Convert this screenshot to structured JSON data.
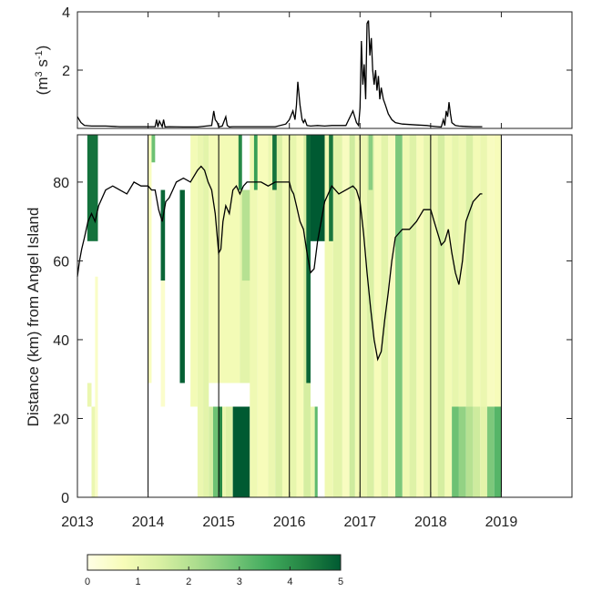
{
  "chart_data": [
    {
      "type": "line",
      "ylabel_main": "(m",
      "ylabel_sup1": "3",
      "ylabel_mid": " s",
      "ylabel_sup2": "-1",
      "ylabel_end": ")",
      "ylim": [
        0,
        4
      ],
      "yticks": [
        2,
        4
      ],
      "xlim": [
        2013,
        2020
      ],
      "series": [
        {
          "x": [
            2013.0,
            2013.05,
            2013.1,
            2013.2,
            2013.4,
            2013.6,
            2013.8,
            2014.0,
            2014.1,
            2014.12,
            2014.14,
            2014.16,
            2014.2,
            2014.22,
            2014.24,
            2014.3,
            2014.5,
            2014.7,
            2014.9,
            2014.93,
            2014.95,
            2014.98,
            2015.0,
            2015.05,
            2015.1,
            2015.12,
            2015.15,
            2015.2,
            2015.4,
            2015.6,
            2015.8,
            2015.95,
            2016.0,
            2016.05,
            2016.08,
            2016.1,
            2016.12,
            2016.15,
            2016.18,
            2016.2,
            2016.22,
            2016.25,
            2016.3,
            2016.4,
            2016.5,
            2016.6,
            2016.8,
            2016.9,
            2016.95,
            2016.98,
            2017.0,
            2017.02,
            2017.04,
            2017.06,
            2017.08,
            2017.1,
            2017.12,
            2017.14,
            2017.16,
            2017.18,
            2017.2,
            2017.22,
            2017.24,
            2017.26,
            2017.28,
            2017.3,
            2017.33,
            2017.36,
            2017.4,
            2017.45,
            2017.5,
            2017.6,
            2017.8,
            2017.95,
            2018.0,
            2018.1,
            2018.15,
            2018.18,
            2018.2,
            2018.22,
            2018.24,
            2018.26,
            2018.28,
            2018.3,
            2018.35,
            2018.4,
            2018.5,
            2018.6,
            2018.7,
            2018.73
          ],
          "y": [
            0.4,
            0.2,
            0.1,
            0.08,
            0.08,
            0.06,
            0.06,
            0.06,
            0.06,
            0.3,
            0.05,
            0.25,
            0.06,
            0.3,
            0.05,
            0.06,
            0.05,
            0.05,
            0.1,
            0.6,
            0.3,
            0.2,
            0.05,
            0.08,
            0.4,
            0.1,
            0.05,
            0.06,
            0.06,
            0.06,
            0.06,
            0.15,
            0.3,
            0.6,
            0.3,
            0.8,
            1.6,
            0.8,
            0.3,
            0.2,
            0.3,
            0.1,
            0.08,
            0.1,
            0.08,
            0.1,
            0.1,
            0.6,
            0.2,
            0.1,
            0.7,
            3.0,
            1.5,
            2.2,
            1.0,
            3.6,
            3.7,
            2.5,
            3.1,
            2.0,
            1.5,
            2.0,
            1.3,
            1.8,
            1.0,
            1.4,
            1.0,
            0.8,
            0.5,
            0.3,
            0.2,
            0.15,
            0.12,
            0.1,
            0.08,
            0.06,
            0.05,
            0.3,
            0.1,
            0.6,
            0.4,
            0.9,
            0.5,
            0.2,
            0.1,
            0.08,
            0.07,
            0.06,
            0.06,
            0.06
          ]
        }
      ]
    },
    {
      "type": "heatmap",
      "ylabel": "Distance (km) from Angel Island",
      "ylim": [
        0,
        92
      ],
      "yticks": [
        0,
        20,
        40,
        60,
        80
      ],
      "xlim": [
        2013,
        2020
      ],
      "xticks": [
        2013,
        2014,
        2015,
        2016,
        2017,
        2018,
        2019
      ],
      "year_lines": [
        2014,
        2015,
        2016,
        2017,
        2018,
        2019
      ],
      "colorbar": {
        "min": 0,
        "max": 5,
        "ticks": [
          0,
          1,
          2,
          3,
          4,
          5
        ],
        "stops": [
          "#ffffe5",
          "#f7fcb9",
          "#d9f0a3",
          "#addd8e",
          "#78c679",
          "#41ab5d",
          "#238443",
          "#005a32"
        ]
      },
      "cells": [
        [
          2013.14,
          2013.2,
          23,
          29,
          1.0
        ],
        [
          2013.2,
          2013.25,
          0,
          23,
          1.0
        ],
        [
          2013.25,
          2013.29,
          0,
          56,
          0.5
        ],
        [
          2013.14,
          2013.29,
          65,
          92,
          4.6
        ],
        [
          2014.0,
          2014.05,
          29,
          92,
          0.6
        ],
        [
          2014.05,
          2014.1,
          85,
          92,
          3.0
        ],
        [
          2014.18,
          2014.24,
          55,
          78,
          4.8
        ],
        [
          2014.18,
          2014.24,
          23,
          55,
          0.4
        ],
        [
          2014.45,
          2014.52,
          29,
          78,
          4.9
        ],
        [
          2014.6,
          2014.7,
          23,
          92,
          0.8
        ],
        [
          2014.7,
          2014.78,
          0,
          92,
          1.0
        ],
        [
          2014.78,
          2014.86,
          0,
          92,
          1.2
        ],
        [
          2014.86,
          2014.92,
          0,
          23,
          1.5
        ],
        [
          2014.92,
          2015.0,
          0,
          23,
          3.0
        ],
        [
          2015.0,
          2015.05,
          0,
          23,
          4.2
        ],
        [
          2015.05,
          2015.1,
          0,
          23,
          1.0
        ],
        [
          2015.1,
          2015.2,
          0,
          23,
          1.3
        ],
        [
          2015.2,
          2015.44,
          0,
          23,
          5.0
        ],
        [
          2014.86,
          2015.3,
          29,
          92,
          0.8
        ],
        [
          2015.28,
          2015.33,
          78,
          92,
          4.2
        ],
        [
          2015.3,
          2015.5,
          29,
          78,
          1.2
        ],
        [
          2015.33,
          2015.45,
          55,
          78,
          2.0
        ],
        [
          2015.44,
          2015.55,
          0,
          92,
          0.9
        ],
        [
          2015.5,
          2015.55,
          78,
          92,
          3.8
        ],
        [
          2015.55,
          2015.7,
          0,
          92,
          0.7
        ],
        [
          2015.7,
          2015.8,
          0,
          92,
          1.0
        ],
        [
          2015.8,
          2015.9,
          0,
          92,
          1.4
        ],
        [
          2015.76,
          2015.82,
          78,
          92,
          4.6
        ],
        [
          2015.9,
          2016.0,
          0,
          92,
          0.8
        ],
        [
          2016.0,
          2016.1,
          0,
          92,
          1.1
        ],
        [
          2016.1,
          2016.2,
          0,
          92,
          0.7
        ],
        [
          2016.2,
          2016.3,
          0,
          92,
          1.5
        ],
        [
          2016.24,
          2016.3,
          29,
          92,
          4.8
        ],
        [
          2016.3,
          2016.36,
          0,
          23,
          1.0
        ],
        [
          2016.3,
          2016.5,
          65,
          92,
          5.0
        ],
        [
          2016.36,
          2016.4,
          0,
          23,
          3.2
        ],
        [
          2016.5,
          2016.62,
          0,
          92,
          0.9
        ],
        [
          2016.56,
          2016.62,
          65,
          92,
          4.5
        ],
        [
          2016.62,
          2016.75,
          0,
          92,
          1.2
        ],
        [
          2016.75,
          2016.85,
          0,
          92,
          0.6
        ],
        [
          2016.85,
          2016.93,
          0,
          92,
          1.6
        ],
        [
          2016.93,
          2017.0,
          0,
          92,
          0.8
        ],
        [
          2017.0,
          2017.1,
          0,
          92,
          1.0
        ],
        [
          2017.1,
          2017.2,
          0,
          92,
          1.4
        ],
        [
          2017.2,
          2017.3,
          0,
          92,
          0.7
        ],
        [
          2017.12,
          2017.18,
          78,
          92,
          2.6
        ],
        [
          2017.3,
          2017.4,
          0,
          92,
          1.2
        ],
        [
          2017.4,
          2017.5,
          0,
          92,
          0.6
        ],
        [
          2017.5,
          2017.6,
          0,
          92,
          2.8
        ],
        [
          2017.6,
          2017.7,
          0,
          92,
          0.9
        ],
        [
          2017.7,
          2017.8,
          0,
          92,
          1.3
        ],
        [
          2017.8,
          2017.9,
          0,
          92,
          0.7
        ],
        [
          2017.9,
          2018.0,
          0,
          92,
          1.1
        ],
        [
          2018.0,
          2018.1,
          0,
          92,
          0.9
        ],
        [
          2018.1,
          2018.2,
          0,
          92,
          1.5
        ],
        [
          2018.2,
          2018.3,
          0,
          92,
          0.8
        ],
        [
          2018.3,
          2018.4,
          0,
          23,
          3.0
        ],
        [
          2018.3,
          2018.4,
          23,
          92,
          1.1
        ],
        [
          2018.4,
          2018.5,
          0,
          23,
          2.5
        ],
        [
          2018.4,
          2018.5,
          23,
          92,
          0.9
        ],
        [
          2018.5,
          2018.6,
          0,
          23,
          2.0
        ],
        [
          2018.5,
          2018.6,
          23,
          92,
          1.4
        ],
        [
          2018.6,
          2018.7,
          0,
          23,
          1.6
        ],
        [
          2018.6,
          2018.7,
          23,
          92,
          0.8
        ],
        [
          2018.7,
          2018.8,
          0,
          23,
          1.2
        ],
        [
          2018.7,
          2018.8,
          23,
          92,
          1.0
        ],
        [
          2018.8,
          2018.9,
          0,
          23,
          2.8
        ],
        [
          2018.8,
          2018.9,
          23,
          92,
          0.6
        ],
        [
          2018.9,
          2019.0,
          0,
          23,
          3.3
        ],
        [
          2018.9,
          2019.0,
          23,
          92,
          0.7
        ]
      ],
      "series": [
        {
          "x": [
            2013.0,
            2013.03,
            2013.06,
            2013.1,
            2013.15,
            2013.2,
            2013.25,
            2013.3,
            2013.4,
            2013.5,
            2013.6,
            2013.7,
            2013.8,
            2013.9,
            2014.0,
            2014.05,
            2014.1,
            2014.15,
            2014.2,
            2014.25,
            2014.3,
            2014.35,
            2014.4,
            2014.5,
            2014.6,
            2014.7,
            2014.75,
            2014.8,
            2014.85,
            2014.9,
            2014.95,
            2015.0,
            2015.03,
            2015.06,
            2015.1,
            2015.15,
            2015.2,
            2015.25,
            2015.3,
            2015.35,
            2015.4,
            2015.5,
            2015.6,
            2015.7,
            2015.8,
            2015.9,
            2016.0,
            2016.03,
            2016.06,
            2016.1,
            2016.15,
            2016.2,
            2016.25,
            2016.3,
            2016.35,
            2016.4,
            2016.5,
            2016.6,
            2016.7,
            2016.8,
            2016.9,
            2016.95,
            2017.0,
            2017.05,
            2017.1,
            2017.15,
            2017.2,
            2017.25,
            2017.3,
            2017.35,
            2017.4,
            2017.45,
            2017.5,
            2017.6,
            2017.7,
            2017.8,
            2017.9,
            2018.0,
            2018.05,
            2018.1,
            2018.15,
            2018.2,
            2018.25,
            2018.3,
            2018.35,
            2018.4,
            2018.45,
            2018.5,
            2018.6,
            2018.7,
            2018.73
          ],
          "y": [
            56,
            60,
            63,
            66,
            70,
            72,
            70,
            74,
            78,
            79,
            78,
            77,
            80,
            79,
            79,
            78,
            78,
            73,
            70,
            75,
            76,
            78,
            80,
            81,
            80,
            83,
            84,
            83,
            80,
            78,
            72,
            62,
            63,
            70,
            74,
            72,
            78,
            79,
            77,
            79,
            80,
            80,
            80,
            79,
            80,
            80,
            80,
            78,
            77,
            74,
            70,
            68,
            62,
            57,
            58,
            65,
            75,
            79,
            77,
            78,
            79,
            78,
            75,
            67,
            57,
            48,
            40,
            35,
            37,
            45,
            52,
            60,
            66,
            68,
            68,
            70,
            73,
            73,
            70,
            67,
            64,
            65,
            68,
            62,
            57,
            54,
            60,
            70,
            75,
            77,
            77
          ]
        }
      ]
    }
  ]
}
